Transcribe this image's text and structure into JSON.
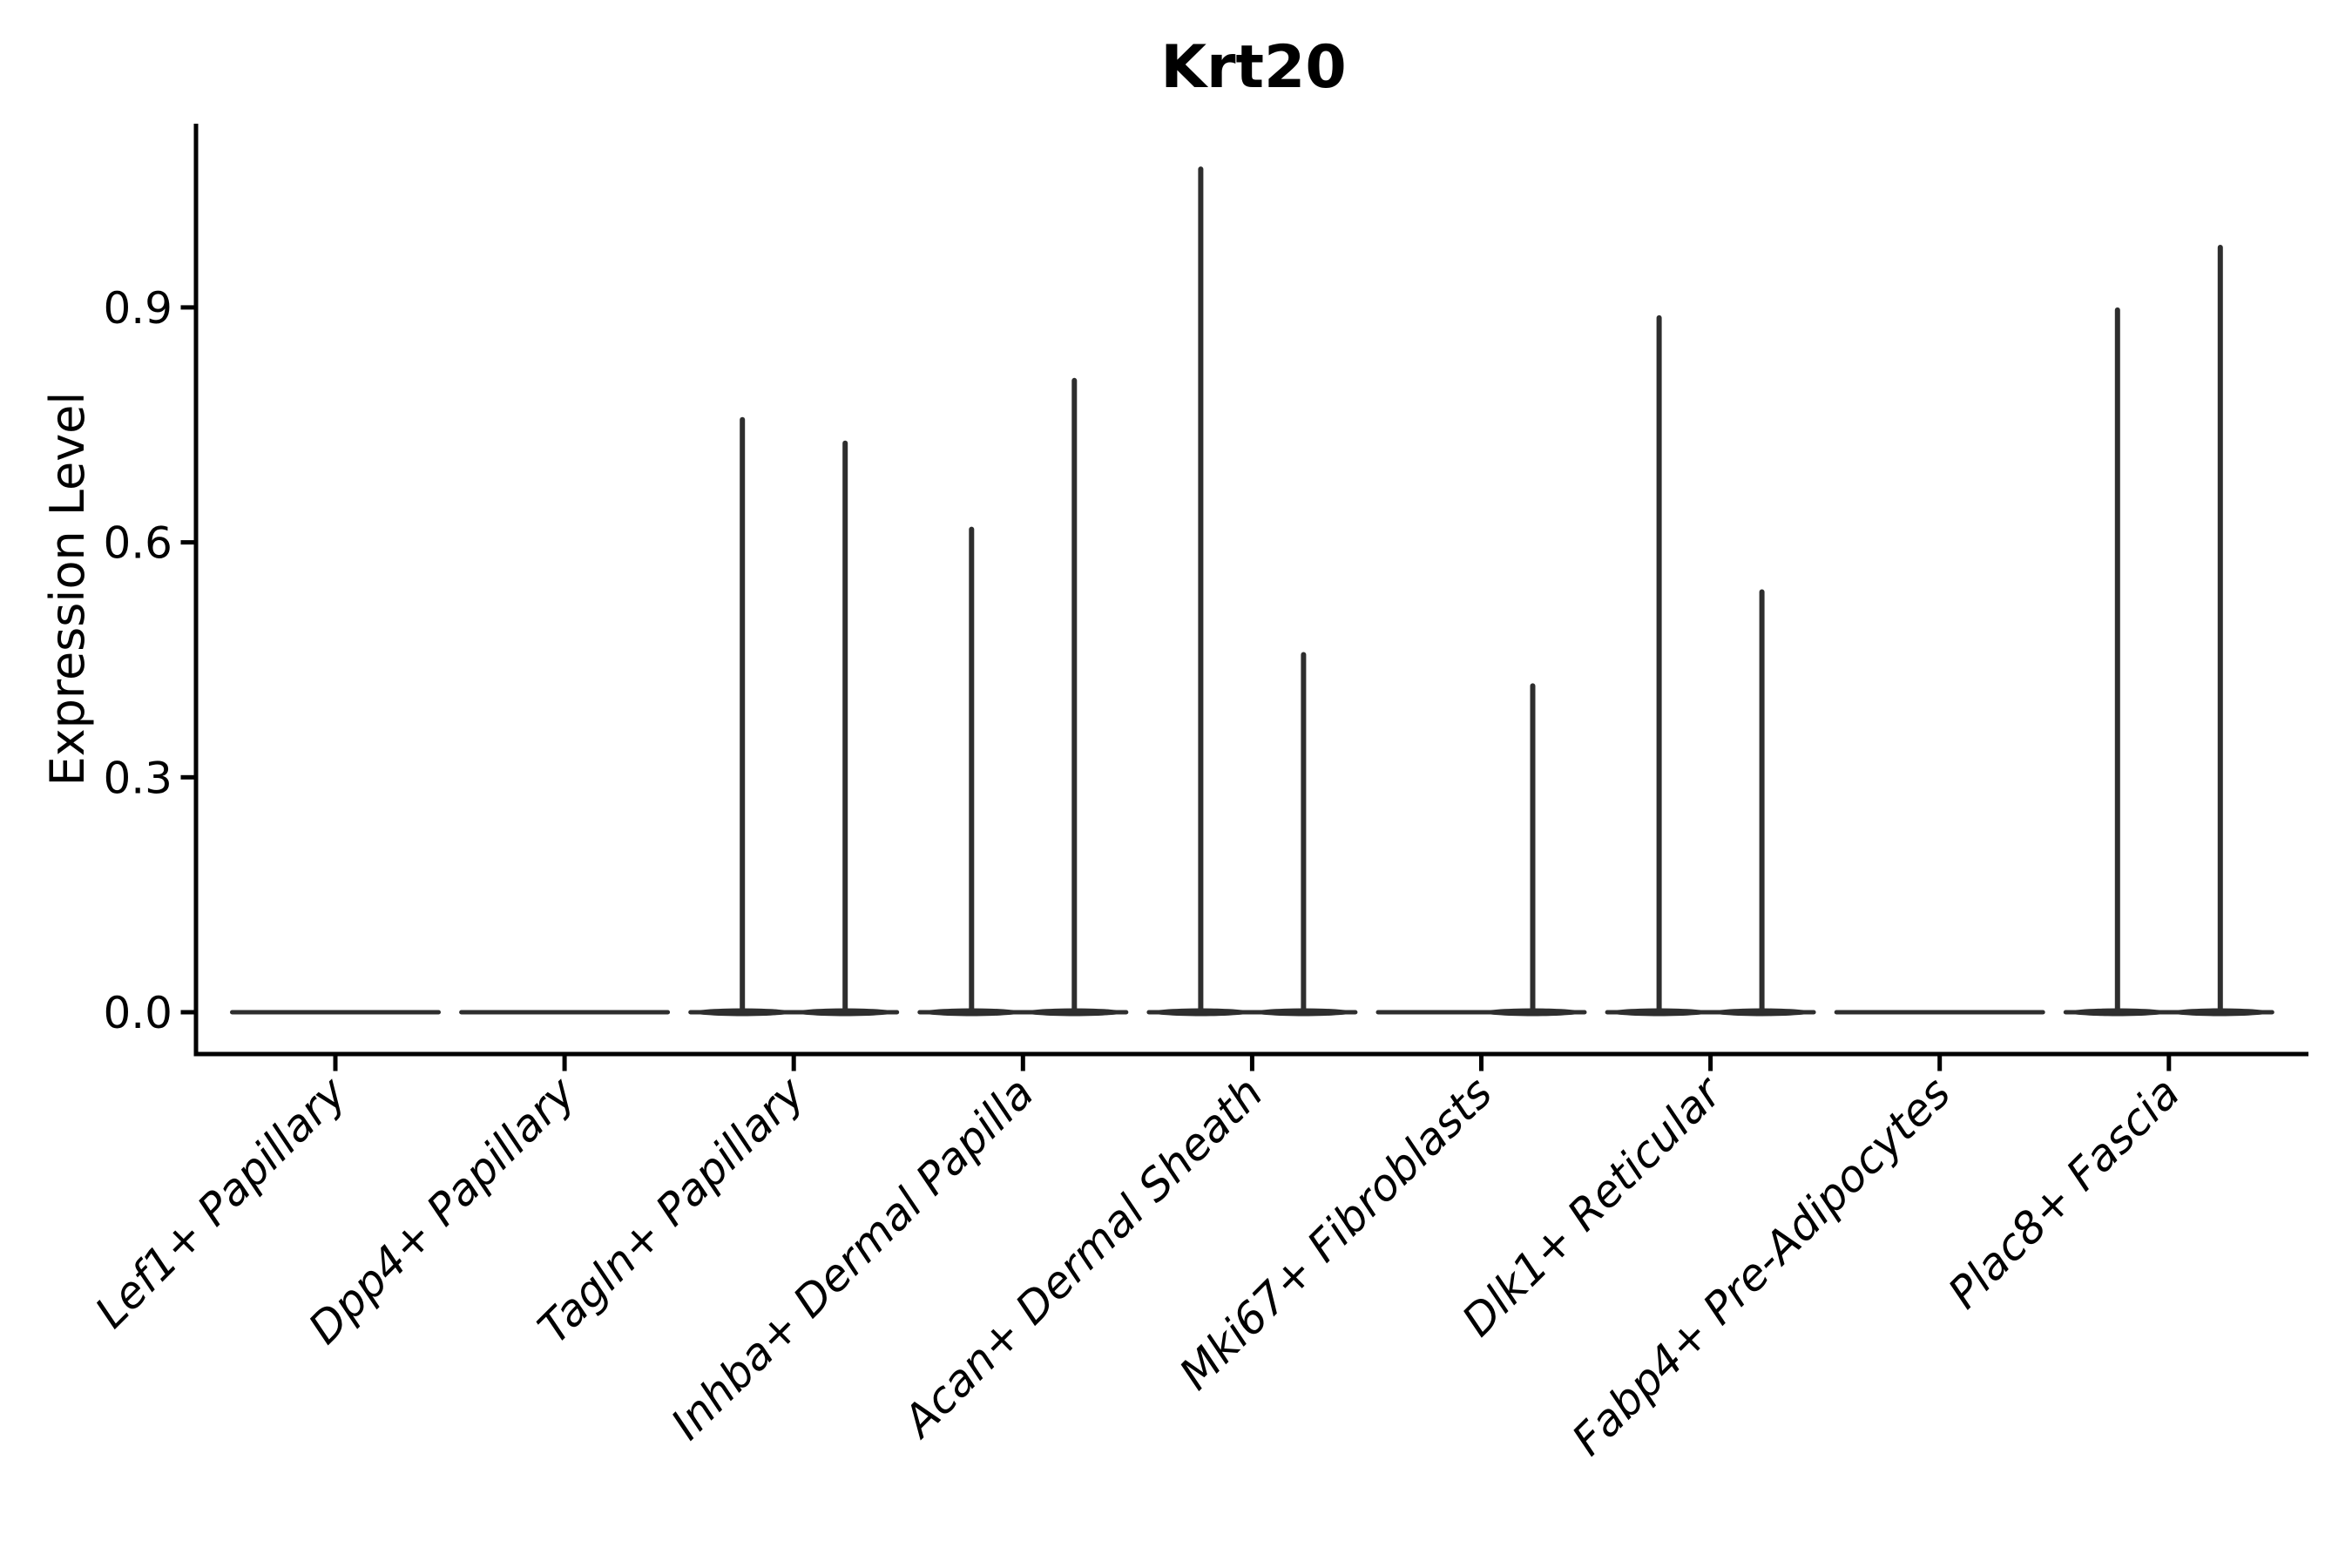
{
  "figure": {
    "title": "Krt20",
    "y_axis_label": "Expression Level"
  },
  "chart_data": {
    "type": "violin",
    "title": "Krt20",
    "xlabel": "",
    "ylabel": "Expression Level",
    "ylim": [
      0,
      1.13
    ],
    "yticks": [
      0,
      0.3,
      0.6,
      0.9
    ],
    "ytick_labels": [
      "0.0",
      "0.3",
      "0.6",
      "0.9"
    ],
    "grid": false,
    "legend": "none",
    "background": "#ffffff",
    "colors": {
      "violin": "#2e2e2e",
      "axis": "#000000",
      "text": "#000000"
    },
    "categories": [
      "Lef1+ Papillary",
      "Dpp4+ Papillary",
      "Tagln+ Papillary",
      "Inhba+ Dermal Papilla",
      "Acan+ Dermal Sheath",
      "Mki67+ Fibroblasts",
      "Dlk1+ Reticular",
      "Fabp4+ Pre-Adipocytes",
      "Plac8+ Fascia"
    ],
    "violins": [
      {
        "category": "Lef1+ Papillary",
        "base_at_zero": true,
        "spike_max": [
          0,
          0
        ]
      },
      {
        "category": "Dpp4+ Papillary",
        "base_at_zero": true,
        "spike_max": [
          0,
          0
        ]
      },
      {
        "category": "Tagln+ Papillary",
        "base_at_zero": true,
        "spike_max": [
          0.76,
          0.73
        ]
      },
      {
        "category": "Inhba+ Dermal Papilla",
        "base_at_zero": true,
        "spike_max": [
          0.62,
          0.81
        ]
      },
      {
        "category": "Acan+ Dermal Sheath",
        "base_at_zero": true,
        "spike_max": [
          1.08,
          0.46
        ]
      },
      {
        "category": "Mki67+ Fibroblasts",
        "base_at_zero": true,
        "spike_max": [
          0,
          0.42
        ]
      },
      {
        "category": "Dlk1+ Reticular",
        "base_at_zero": true,
        "spike_max": [
          0.89,
          0.54
        ]
      },
      {
        "category": "Fabp4+ Pre-Adipocytes",
        "base_at_zero": true,
        "spike_max": [
          0,
          0
        ]
      },
      {
        "category": "Plac8+ Fascia",
        "base_at_zero": true,
        "spike_max": [
          0.9,
          0.98
        ]
      }
    ]
  }
}
